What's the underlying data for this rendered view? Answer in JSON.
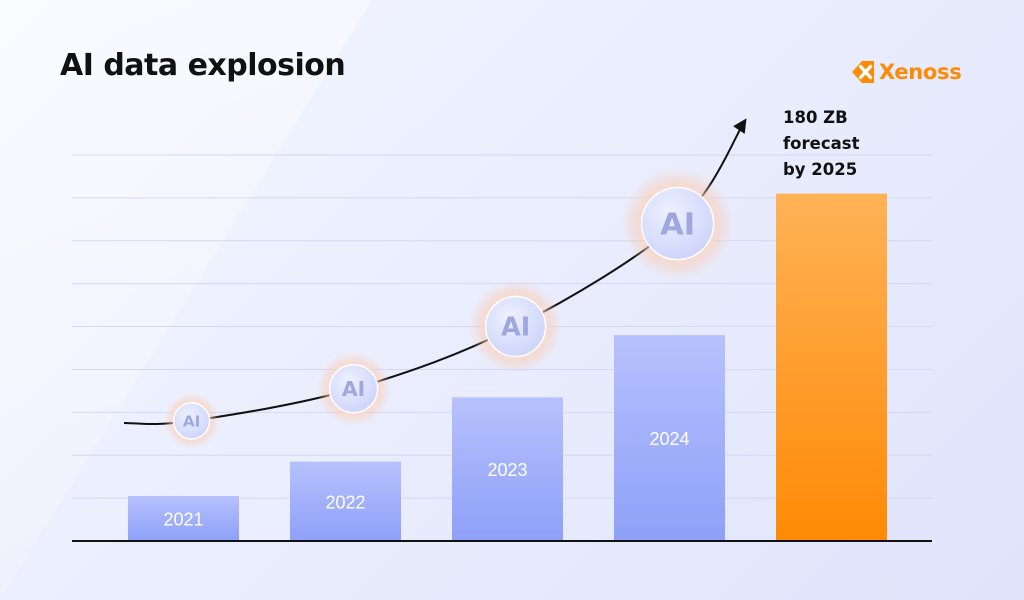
{
  "header": {
    "title": "AI data explosion",
    "logo_text": "Xenoss"
  },
  "annotation": {
    "lines": [
      "180 ZB",
      "forecast",
      "by 2025"
    ]
  },
  "colors": {
    "bar_blue_top": "#b7c1fd",
    "bar_blue_bottom": "#8ea0f8",
    "bar_orange_top": "#ffb257",
    "bar_orange_bottom": "#ff8a05",
    "brand": "#ff8a05",
    "axis": "#111111",
    "grid": "#d3d8f4",
    "trend_line": "#111111",
    "bubble_text": "#9ea8dc"
  },
  "icons": [
    "xenoss-logo-icon",
    "ai-bubble-icon",
    "trend-arrow-icon"
  ],
  "chart_data": {
    "type": "bar",
    "categories": [
      "2021",
      "2022",
      "2023",
      "2024",
      ""
    ],
    "values": [
      10.5,
      18.5,
      33.5,
      48,
      81
    ],
    "highlight_index": 4,
    "bubble_label": "AI",
    "bubble_positions": [
      {
        "x": 0.55,
        "y": 28
      },
      {
        "x": 1.55,
        "y": 35.5
      },
      {
        "x": 2.55,
        "y": 50
      },
      {
        "x": 3.55,
        "y": 74
      }
    ],
    "xlabel": "",
    "ylabel": "",
    "ylim": [
      0,
      90
    ],
    "grid": true,
    "gridline_values": [
      10,
      20,
      30,
      40,
      50,
      60,
      70,
      80,
      90
    ],
    "legend": "none"
  }
}
